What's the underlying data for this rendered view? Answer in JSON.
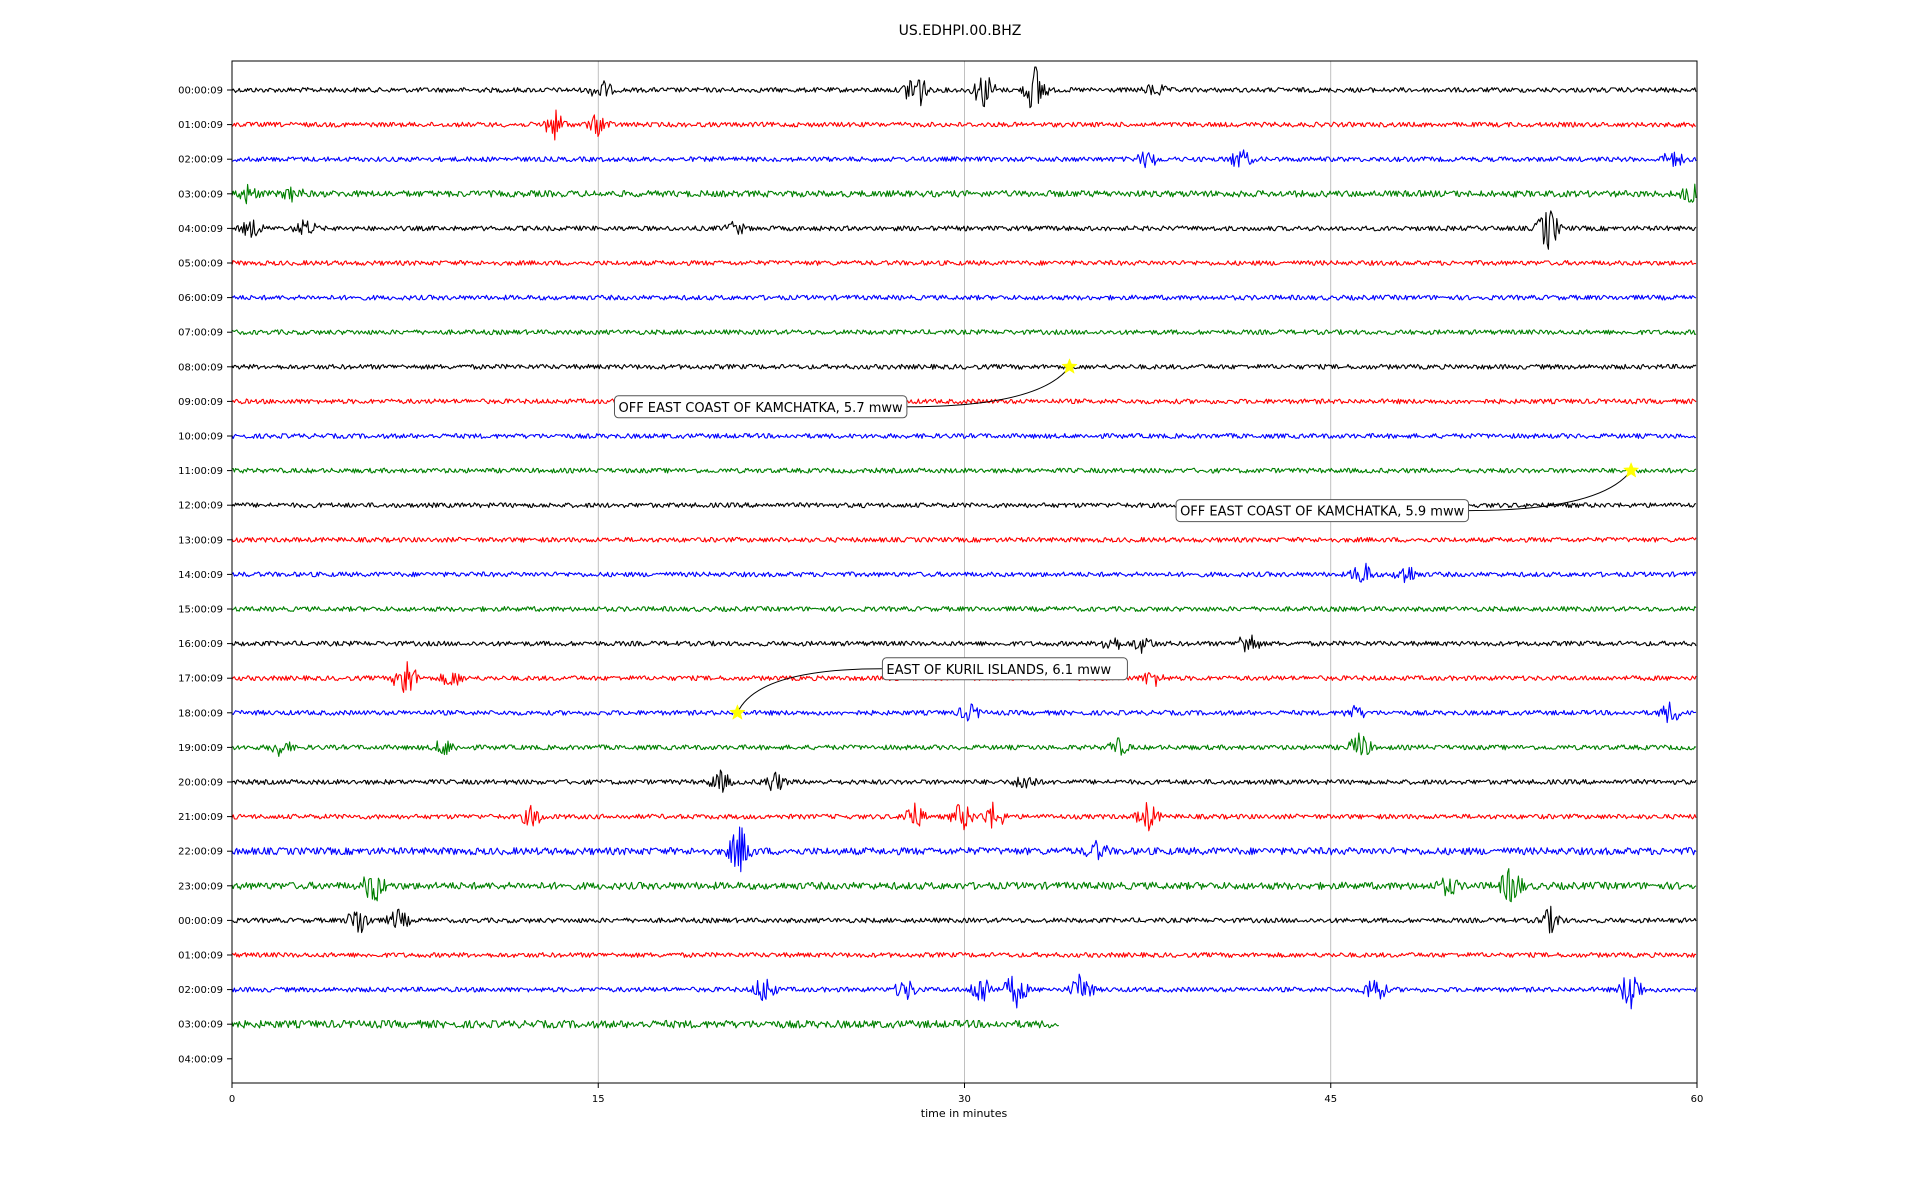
{
  "chart_data": {
    "type": "line",
    "title": "US.EDHPI.00.BHZ",
    "xlabel": "time in minutes",
    "ylabel": "",
    "xlim": [
      0,
      60
    ],
    "x_ticks": [
      "0",
      "15",
      "30",
      "45",
      "60"
    ],
    "grid": "vertical lines at x ticks",
    "trace_colors": [
      "#000000",
      "#ff0000",
      "#0000ff",
      "#008000"
    ],
    "traces": [
      {
        "label": "00:00:09",
        "end_minute": 60
      },
      {
        "label": "01:00:09",
        "end_minute": 60
      },
      {
        "label": "02:00:09",
        "end_minute": 60
      },
      {
        "label": "03:00:09",
        "end_minute": 60
      },
      {
        "label": "04:00:09",
        "end_minute": 60
      },
      {
        "label": "05:00:09",
        "end_minute": 60
      },
      {
        "label": "06:00:09",
        "end_minute": 60
      },
      {
        "label": "07:00:09",
        "end_minute": 60
      },
      {
        "label": "08:00:09",
        "end_minute": 60
      },
      {
        "label": "09:00:09",
        "end_minute": 60
      },
      {
        "label": "10:00:09",
        "end_minute": 60
      },
      {
        "label": "11:00:09",
        "end_minute": 60
      },
      {
        "label": "12:00:09",
        "end_minute": 60
      },
      {
        "label": "13:00:09",
        "end_minute": 60
      },
      {
        "label": "14:00:09",
        "end_minute": 60
      },
      {
        "label": "15:00:09",
        "end_minute": 60
      },
      {
        "label": "16:00:09",
        "end_minute": 60
      },
      {
        "label": "17:00:09",
        "end_minute": 60
      },
      {
        "label": "18:00:09",
        "end_minute": 60
      },
      {
        "label": "19:00:09",
        "end_minute": 60
      },
      {
        "label": "20:00:09",
        "end_minute": 60
      },
      {
        "label": "21:00:09",
        "end_minute": 60
      },
      {
        "label": "22:00:09",
        "end_minute": 60
      },
      {
        "label": "23:00:09",
        "end_minute": 60
      },
      {
        "label": "00:00:09",
        "end_minute": 60
      },
      {
        "label": "01:00:09",
        "end_minute": 60
      },
      {
        "label": "02:00:09",
        "end_minute": 60
      },
      {
        "label": "03:00:09",
        "end_minute": 33.9
      },
      {
        "label": "04:00:09",
        "end_minute": 0
      }
    ],
    "events": [
      {
        "trace_index": 8,
        "minute": 34.3,
        "label": "OFF EAST COAST OF KAMCHATKA, 5.7 mww"
      },
      {
        "trace_index": 11,
        "minute": 57.3,
        "label": "OFF EAST COAST OF KAMCHATKA, 5.9 mww"
      },
      {
        "trace_index": 18,
        "minute": 20.7,
        "label": "EAST OF KURIL ISLANDS, 6.1 mww"
      }
    ],
    "event_marker_color": "#ffff00"
  }
}
